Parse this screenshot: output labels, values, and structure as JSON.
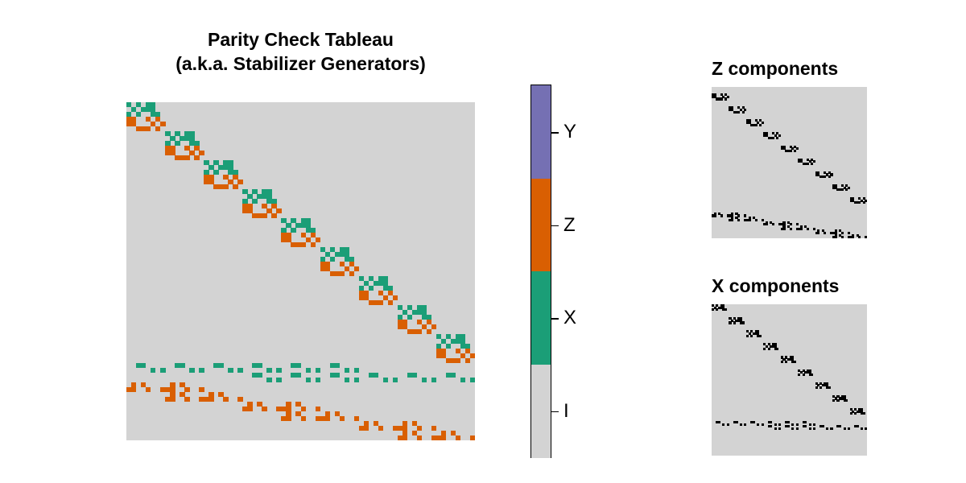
{
  "main": {
    "title_line1": "Parity Check Tableau",
    "title_line2": "(a.k.a. Stabilizer Generators)"
  },
  "panels": {
    "z_title": "Z components",
    "x_title": "X components"
  },
  "colorbar": {
    "labels": [
      "Y",
      "Z",
      "X",
      "I"
    ],
    "colors": {
      "Y": "#7570b3",
      "Z": "#d95f02",
      "X": "#1b9e77",
      "I": "#d3d3d3"
    }
  },
  "chart_data": {
    "type": "heatmap",
    "title": "Parity Check Tableau (a.k.a. Stabilizer Generators)",
    "rows": 70,
    "cols": 72,
    "value_legend": [
      "I",
      "X",
      "Z",
      "Y"
    ],
    "colormap": {
      "I": "#d3d3d3",
      "X": "#1b9e77",
      "Z": "#d95f02",
      "Y": "#7570b3"
    },
    "block_pattern": {
      "description": "Repeated 9 times along the diagonal, block b at row offset 6*b, col offset 8*b",
      "count": 9,
      "row_step": 6,
      "col_step": 8,
      "rows": [
        {
          "pauli": "X",
          "cols": [
            0,
            2,
            4,
            5
          ]
        },
        {
          "pauli": "X",
          "cols": [
            1,
            3,
            4,
            5
          ]
        },
        {
          "pauli": "X",
          "cols": [
            0,
            2,
            5,
            6
          ]
        },
        {
          "pauli": "Z",
          "cols": [
            0,
            1,
            4,
            6
          ]
        },
        {
          "pauli": "Z",
          "cols": [
            0,
            1,
            5,
            7
          ]
        },
        {
          "pauli": "Z",
          "cols": [
            2,
            3,
            4,
            6
          ]
        }
      ]
    },
    "extra_rows": [
      {
        "row": 54,
        "pauli": "X",
        "cols": [
          2,
          3,
          10,
          11,
          18,
          19,
          26,
          27,
          34,
          35,
          42,
          43
        ]
      },
      {
        "row": 55,
        "pauli": "X",
        "cols": [
          5,
          7,
          13,
          15,
          21,
          23,
          29,
          31,
          37,
          39,
          45,
          47
        ]
      },
      {
        "row": 56,
        "pauli": "X",
        "cols": [
          26,
          27,
          34,
          35,
          42,
          43,
          50,
          51,
          58,
          59,
          66,
          67
        ]
      },
      {
        "row": 57,
        "pauli": "X",
        "cols": [
          29,
          31,
          37,
          39,
          45,
          47,
          53,
          55,
          61,
          63,
          69,
          71
        ]
      },
      {
        "row": 58,
        "pauli": "Z",
        "cols": [
          1,
          3,
          9,
          11
        ]
      },
      {
        "row": 59,
        "pauli": "Z",
        "cols": [
          0,
          1,
          4,
          7,
          8,
          9,
          12,
          15
        ]
      },
      {
        "row": 60,
        "pauli": "Z",
        "cols": [
          9,
          11,
          17,
          19
        ]
      },
      {
        "row": 61,
        "pauli": "Z",
        "cols": [
          8,
          9,
          12,
          15,
          16,
          17,
          20,
          23
        ]
      },
      {
        "row": 62,
        "pauli": "Z",
        "cols": [
          25,
          27,
          33,
          35
        ]
      },
      {
        "row": 63,
        "pauli": "Z",
        "cols": [
          24,
          25,
          28,
          31,
          32,
          33,
          36,
          39
        ]
      },
      {
        "row": 64,
        "pauli": "Z",
        "cols": [
          33,
          35,
          41,
          43
        ]
      },
      {
        "row": 65,
        "pauli": "Z",
        "cols": [
          32,
          33,
          36,
          39,
          40,
          41,
          44,
          47
        ]
      },
      {
        "row": 66,
        "pauli": "Z",
        "cols": [
          49,
          51,
          57,
          59
        ]
      },
      {
        "row": 67,
        "pauli": "Z",
        "cols": [
          48,
          49,
          52,
          55,
          56,
          57,
          60,
          63
        ]
      },
      {
        "row": 68,
        "pauli": "Z",
        "cols": [
          57,
          59,
          65,
          67
        ]
      },
      {
        "row": 69,
        "pauli": "Z",
        "cols": [
          56,
          57,
          60,
          63,
          64,
          65,
          68,
          71
        ]
      }
    ],
    "subplots": [
      {
        "title": "Z components",
        "shows": [
          "Z",
          "Y"
        ],
        "on_color": "#000000",
        "off_color": "#d3d3d3"
      },
      {
        "title": "X components",
        "shows": [
          "X",
          "Y"
        ],
        "on_color": "#000000",
        "off_color": "#d3d3d3"
      }
    ]
  }
}
